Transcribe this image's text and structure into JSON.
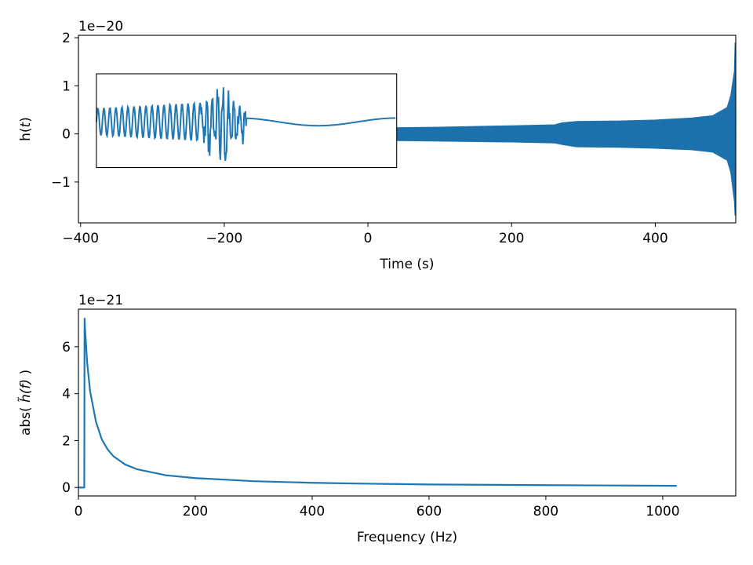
{
  "chart_data": [
    {
      "type": "line",
      "id": "time-domain",
      "title": "",
      "xlabel": "Time (s)",
      "ylabel_prefix": "h(",
      "ylabel_var": "t",
      "ylabel_suffix": ")",
      "y_offset_text": "1e−20",
      "xlim": [
        -403,
        512
      ],
      "ylim": [
        -1.85,
        2.05
      ],
      "x_ticks": [
        -400,
        -200,
        0,
        200,
        400
      ],
      "x_tick_labels": [
        "−400",
        "−200",
        "0",
        "200",
        "400"
      ],
      "y_ticks": [
        -1,
        0,
        1,
        2
      ],
      "y_tick_labels": [
        "−1",
        "0",
        "1",
        "2"
      ],
      "color": "#1f77b4",
      "grid": false,
      "series": [
        {
          "values_note_free": true,
          "envelope": {
            "x": [
              40,
              100,
              200,
              260,
              270,
              290,
              350,
              400,
              450,
              480,
              500,
              505,
              510,
              511
            ],
            "y_min": [
              -0.14,
              -0.15,
              -0.17,
              -0.19,
              -0.22,
              -0.27,
              -0.28,
              -0.3,
              -0.33,
              -0.38,
              -0.55,
              -0.8,
              -1.4,
              -1.7
            ],
            "y_max": [
              0.13,
              0.14,
              0.17,
              0.19,
              0.23,
              0.26,
              0.27,
              0.29,
              0.33,
              0.38,
              0.55,
              0.8,
              1.3,
              1.9
            ]
          }
        }
      ],
      "inset": {
        "x_range": [
          -378,
          40
        ],
        "y_range": [
          -0.7,
          1.25
        ],
        "description_free": true,
        "segments": [
          {
            "kind": "oscillation",
            "from": 0.0,
            "to": 0.35,
            "amp": [
              0.28,
              0.4
            ],
            "center": 0.25
          },
          {
            "kind": "noisy",
            "from": 0.35,
            "to": 0.5,
            "amp": [
              0.35,
              0.7
            ],
            "center": 0.25
          },
          {
            "kind": "smooth",
            "from": 0.5,
            "to": 1.0
          }
        ]
      }
    },
    {
      "type": "line",
      "id": "frequency-domain",
      "title": "",
      "xlabel": "Frequency (Hz)",
      "ylabel_prefix": "abs( ",
      "ylabel_var": "h̃(f)",
      "ylabel_suffix": " )",
      "y_offset_text": "1e−21",
      "xlim": [
        0,
        1125
      ],
      "ylim": [
        -0.36,
        7.6
      ],
      "x_ticks": [
        0,
        200,
        400,
        600,
        800,
        1000
      ],
      "x_tick_labels": [
        "0",
        "200",
        "400",
        "600",
        "800",
        "1000"
      ],
      "y_ticks": [
        0,
        2,
        4,
        6
      ],
      "y_tick_labels": [
        "0",
        "2",
        "4",
        "6"
      ],
      "color": "#1f77b4",
      "grid": false,
      "series": [
        {
          "x": [
            0,
            10,
            10.5,
            11,
            15,
            20,
            30,
            40,
            50,
            60,
            80,
            100,
            150,
            200,
            300,
            400,
            500,
            600,
            800,
            1000,
            1024
          ],
          "y": [
            0,
            0,
            7.2,
            6.9,
            5.3,
            4.1,
            2.8,
            2.05,
            1.62,
            1.33,
            0.98,
            0.78,
            0.52,
            0.4,
            0.27,
            0.2,
            0.16,
            0.13,
            0.1,
            0.075,
            0.07
          ]
        }
      ]
    }
  ]
}
